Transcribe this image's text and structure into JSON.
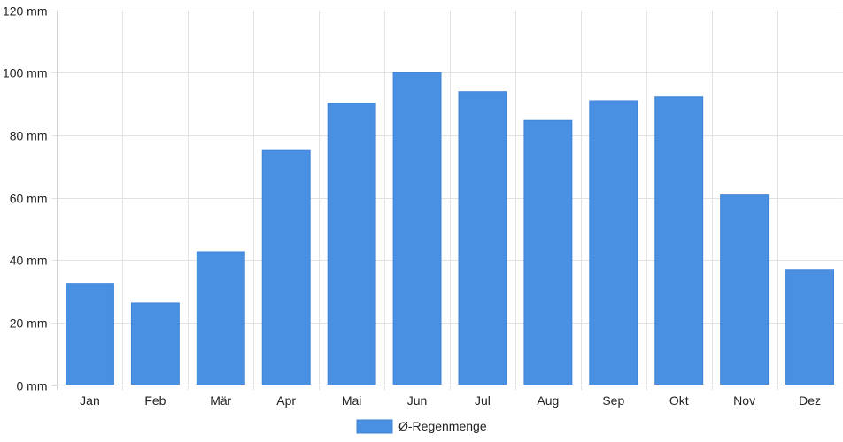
{
  "colors": {
    "bar": "#4a90e2",
    "grid": "#e2e2e2",
    "axis": "#cfcfcf",
    "text": "#222222"
  },
  "legend": {
    "position": "bottom-center",
    "label": "Ø-Regenmenge"
  },
  "chart_data": {
    "type": "bar",
    "categories": [
      "Jan",
      "Feb",
      "Mär",
      "Apr",
      "Mai",
      "Jun",
      "Jul",
      "Aug",
      "Sep",
      "Okt",
      "Nov",
      "Dez"
    ],
    "series": [
      {
        "name": "Ø-Regenmenge",
        "values": [
          32.5,
          26.2,
          42.6,
          75.1,
          90.2,
          100.0,
          93.9,
          84.7,
          91.0,
          92.2,
          60.8,
          37.0
        ]
      }
    ],
    "y_ticks": [
      "0 mm",
      "20 mm",
      "40 mm",
      "60 mm",
      "80 mm",
      "100 mm",
      "120 mm"
    ],
    "y_tick_values": [
      0,
      20,
      40,
      60,
      80,
      100,
      120
    ],
    "ylim": [
      0,
      120
    ],
    "unit": "mm",
    "grid": true,
    "title": "",
    "xlabel": "",
    "ylabel": ""
  }
}
